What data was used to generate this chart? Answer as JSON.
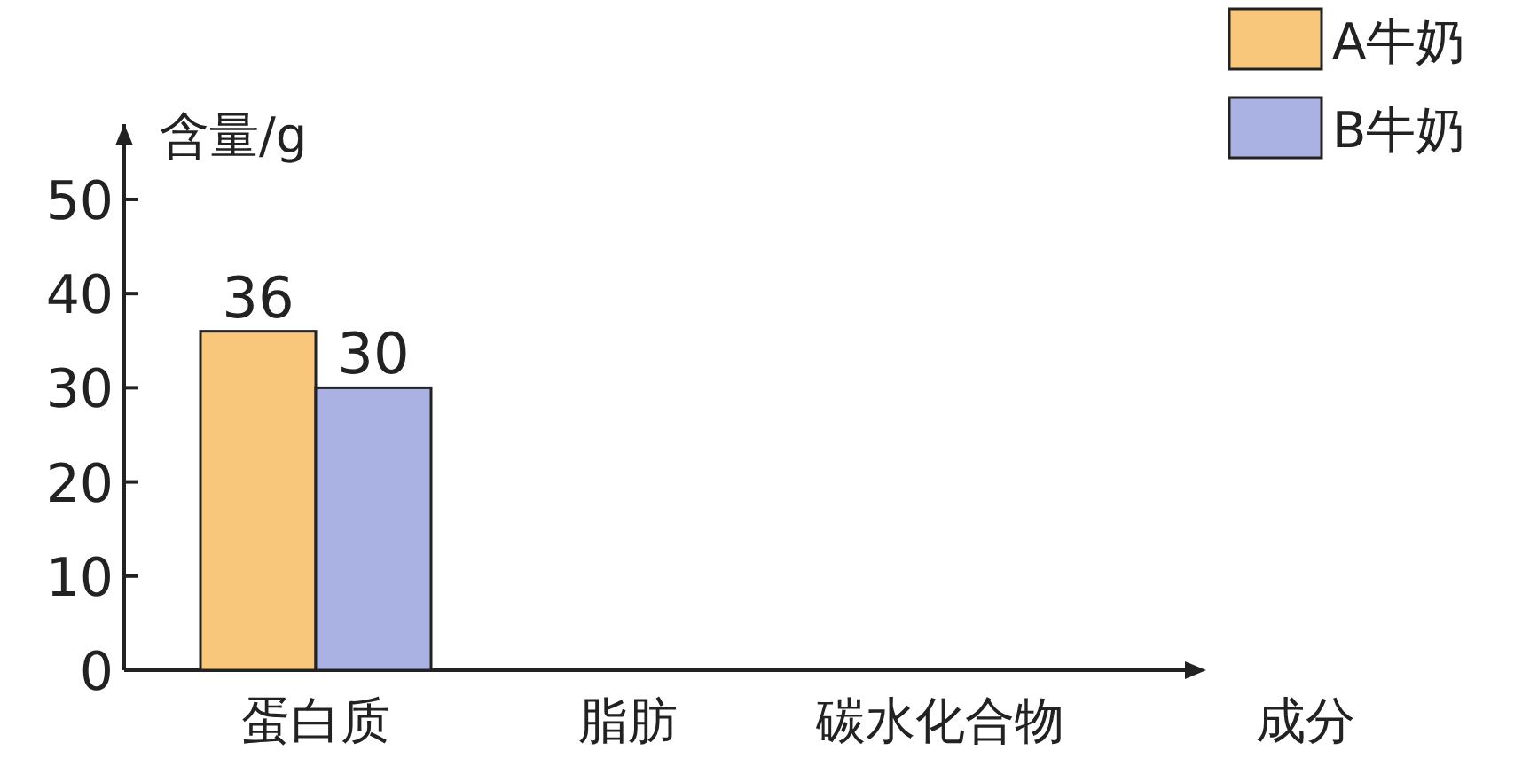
{
  "chart_data": {
    "type": "bar",
    "ylabel": "含量/g",
    "xlabel": "成分",
    "categories": [
      "蛋白质",
      "脂肪",
      "碳水化合物"
    ],
    "series": [
      {
        "name": "A牛奶",
        "color": "#f8c77c",
        "values": [
          36,
          null,
          null
        ]
      },
      {
        "name": "B牛奶",
        "color": "#a9b2e2",
        "values": [
          30,
          null,
          null
        ]
      }
    ],
    "ylim": [
      0,
      58
    ],
    "yticks": [
      0,
      10,
      20,
      30,
      40,
      50
    ],
    "data_labels": true,
    "legend": "top right",
    "grid": false
  }
}
